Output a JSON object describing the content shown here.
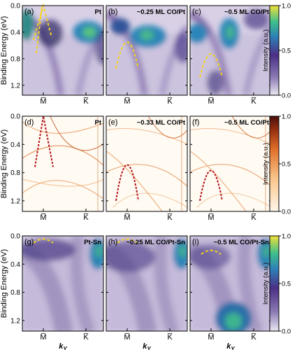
{
  "figure": {
    "rows": [
      {
        "id": "row1",
        "cmap": "viridis",
        "colorbar": {
          "label": "Intensity (a.u.)",
          "ticks": [
            "1.0",
            "0.5",
            "0.0"
          ]
        },
        "panels": [
          {
            "tag": "(a)",
            "title": "Pt",
            "curve": "m"
          },
          {
            "tag": "(b)",
            "title": "~0.25 ML CO/Pt",
            "curve": "arch"
          },
          {
            "tag": "(c)",
            "title": "~0.5 ML CO/Pt",
            "curve": "arch"
          }
        ]
      },
      {
        "id": "row2",
        "cmap": "orange",
        "colorbar": {
          "label": "Intensity (a.u.)",
          "ticks": [
            "1.0",
            "0.5",
            "0.0"
          ]
        },
        "panels": [
          {
            "tag": "(d)",
            "title": "Pt",
            "curve": "m"
          },
          {
            "tag": "(e)",
            "title": "~0.33 ML CO/Pt",
            "curve": "arch"
          },
          {
            "tag": "(f)",
            "title": "~0.5 ML CO/Pt",
            "curve": "arch"
          }
        ]
      },
      {
        "id": "row3",
        "cmap": "viridis",
        "colorbar": {
          "label": "Intensity (a.u.)",
          "ticks": [
            "1.0",
            "0.5",
            "0.0"
          ]
        },
        "panels": [
          {
            "tag": "(g)",
            "title": "Pt-Sn",
            "curve": "flat"
          },
          {
            "tag": "(h)",
            "title": "~0.25 ML CO/Pt-Sn",
            "curve": "flat"
          },
          {
            "tag": "(i)",
            "title": "~0.5 ML CO/Pt-Sn",
            "curve": "flat"
          }
        ]
      }
    ],
    "ylabel": "Binding Energy (eV)",
    "yticks": [
      "0.0",
      "0.4",
      "0.8",
      "1.2"
    ],
    "xticks": [
      "M̅",
      "K̅"
    ],
    "xlabel_main": "k",
    "xlabel_sub": "Y",
    "chart_data": {
      "type": "heatmap",
      "y": {
        "label": "Binding Energy (eV)",
        "ticks": [
          0.0,
          0.4,
          0.8,
          1.2
        ],
        "lim": [
          0.0,
          1.35
        ],
        "inverted": true
      },
      "x": {
        "ticks": [
          "M̅",
          "K̅"
        ]
      },
      "colorbar_range": [
        0.0,
        1.0
      ],
      "fermi_level_dashed": true
    }
  }
}
